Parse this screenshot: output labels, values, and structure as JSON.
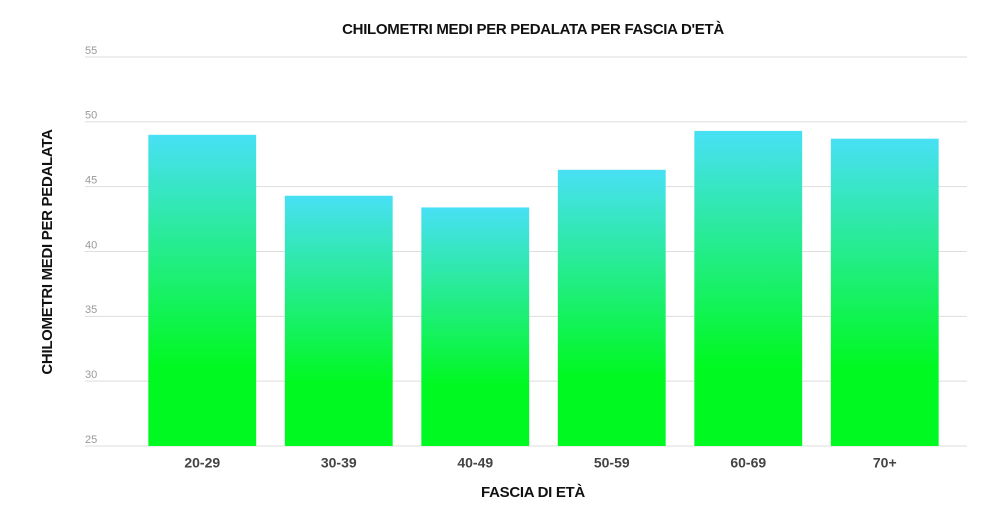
{
  "chart_data": {
    "type": "bar",
    "title": "CHILOMETRI MEDI PER PEDALATA PER FASCIA D'ETÀ",
    "x_label": "FASCIA DI ETÀ",
    "y_label": "CHILOMETRI MEDI PER PEDALATA",
    "categories": [
      "20-29",
      "30-39",
      "40-49",
      "50-59",
      "60-69",
      "70+"
    ],
    "values": [
      49.0,
      44.3,
      43.4,
      46.3,
      49.3,
      48.7
    ],
    "color": [
      "#48e0f5",
      "#00f920"
    ],
    "ylim": [
      25,
      55
    ],
    "yticks": [
      25,
      30,
      35,
      40,
      45,
      50,
      55
    ],
    "grid": true
  }
}
